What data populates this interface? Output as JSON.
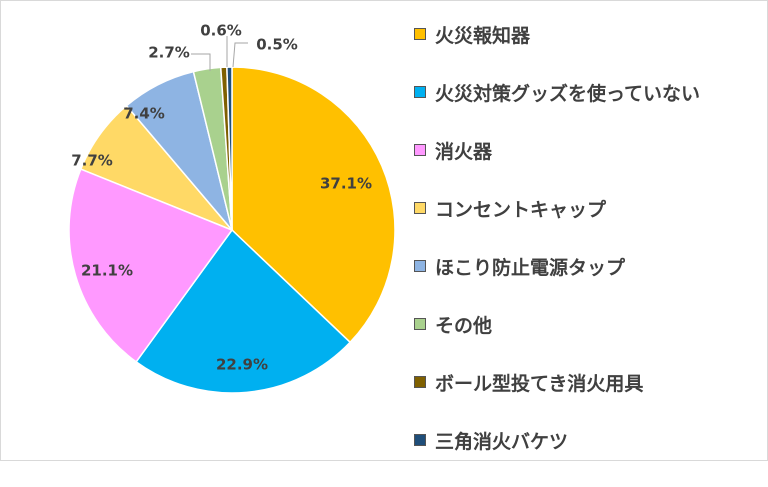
{
  "chart_data": {
    "type": "pie",
    "title": "",
    "categories": [
      "火災報知器",
      "火災対策グッズを使っていない",
      "消火器",
      "コンセントキャップ",
      "ほこり防止電源タップ",
      "その他",
      "ボール型投てき消火用具",
      "三角消火バケツ"
    ],
    "values": [
      37.1,
      22.9,
      21.1,
      7.7,
      7.4,
      2.7,
      0.6,
      0.5
    ],
    "labels": [
      "37.1%",
      "22.9%",
      "21.1%",
      "7.7%",
      "7.4%",
      "2.7%",
      "0.6%",
      "0.5%"
    ],
    "colors": [
      "#FFC000",
      "#00B0F0",
      "#FF99FF",
      "#FFD966",
      "#8EB4E3",
      "#A9D18E",
      "#7F6000",
      "#1F4E79"
    ],
    "start": "12 o'clock",
    "direction": "clockwise",
    "legend_position": "right"
  }
}
